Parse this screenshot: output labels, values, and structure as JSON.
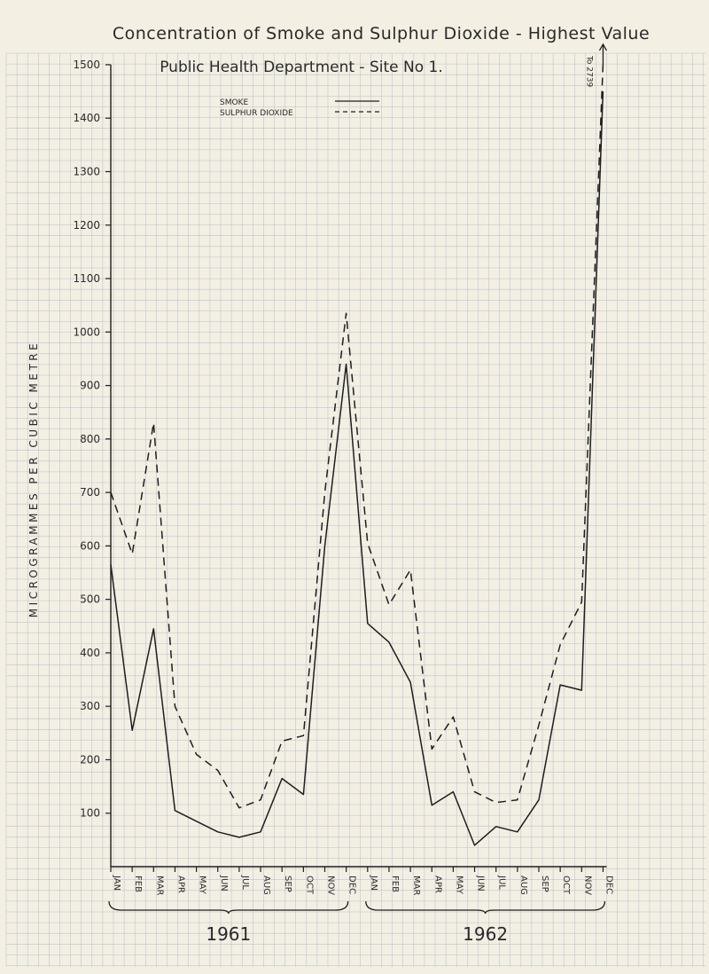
{
  "colors": {
    "paper": "#f3efe3",
    "grid": "#b9c3ce",
    "ink": "#1e1e1e"
  },
  "chart_data": {
    "type": "line",
    "title": "Concentration of Smoke and Sulphur Dioxide - Highest Value",
    "subtitle": "Public Health Department - Site No 1.",
    "ylabel": "MICROGRAMMES PER CUBIC METRE",
    "xlabel": "",
    "ylim": [
      0,
      1500
    ],
    "yticks": [
      100,
      200,
      300,
      400,
      500,
      600,
      700,
      800,
      900,
      1000,
      1100,
      1200,
      1300,
      1400,
      1500
    ],
    "grid": true,
    "legend_position": "top-center",
    "categories": [
      "JAN",
      "FEB",
      "MAR",
      "APR",
      "MAY",
      "JUN",
      "JUL",
      "AUG",
      "SEP",
      "OCT",
      "NOV",
      "DEC",
      "JAN",
      "FEB",
      "MAR",
      "APR",
      "MAY",
      "JUN",
      "JUL",
      "AUG",
      "SEP",
      "OCT",
      "NOV",
      "DEC"
    ],
    "year_groups": [
      {
        "label": "1961",
        "from": 0,
        "to": 11
      },
      {
        "label": "1962",
        "from": 12,
        "to": 23
      }
    ],
    "series": [
      {
        "name": "SMOKE",
        "style": "solid",
        "values": [
          565,
          255,
          445,
          105,
          85,
          65,
          55,
          65,
          165,
          135,
          600,
          940,
          455,
          420,
          345,
          115,
          140,
          40,
          75,
          65,
          125,
          340,
          330,
          1450
        ]
      },
      {
        "name": "SULPHUR DIOXIDE",
        "style": "dashed",
        "values": [
          700,
          585,
          830,
          300,
          210,
          180,
          110,
          125,
          235,
          245,
          700,
          1035,
          605,
          490,
          555,
          220,
          280,
          140,
          120,
          125,
          265,
          415,
          495,
          1500
        ]
      }
    ],
    "annotations": [
      {
        "text": "To 2739",
        "series": "SULPHUR DIOXIDE",
        "index": 23
      }
    ]
  }
}
